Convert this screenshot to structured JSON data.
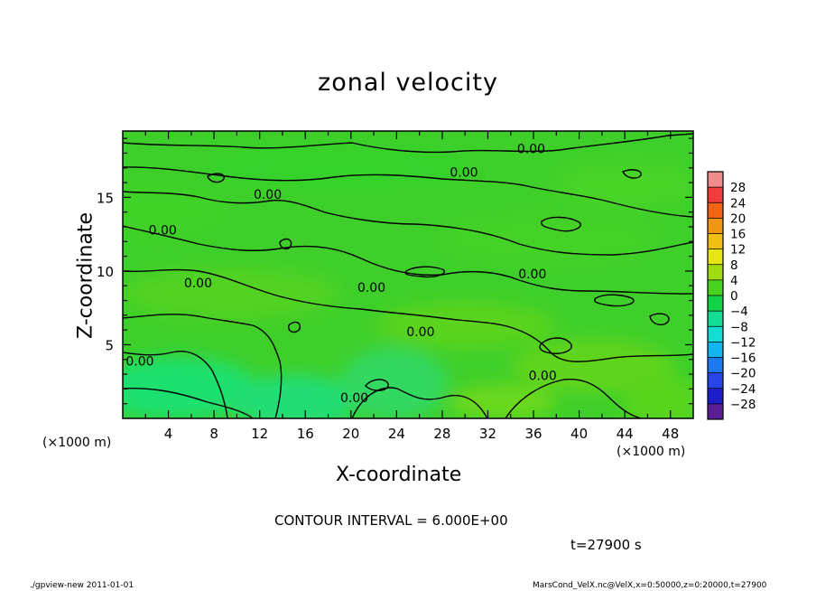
{
  "page": {
    "footer_left": "./gpview-new   2011-01-01",
    "footer_right": "MarsCond_VelX.nc@VelX,x=0:50000,z=0:20000,t=27900"
  },
  "chart_data": {
    "type": "heatmap",
    "title": "zonal velocity",
    "xlabel": "X-coordinate",
    "ylabel": "Z-coordinate",
    "x_unit_label": "(×1000 m)",
    "xlim": [
      0,
      50
    ],
    "ylim": [
      0,
      19.5
    ],
    "x_ticks": [
      4,
      8,
      12,
      16,
      20,
      24,
      28,
      32,
      36,
      40,
      44,
      48
    ],
    "y_ticks": [
      5,
      10,
      15
    ],
    "contour_interval_text": "CONTOUR INTERVAL = 6.000E+00",
    "time_text": "t=27900 s",
    "contour_levels": [
      0
    ],
    "contour_labels": [
      {
        "text": "0.00",
        "x": 35.8,
        "y": 18.3
      },
      {
        "text": "0.00",
        "x": 29.9,
        "y": 16.7
      },
      {
        "text": "0.00",
        "x": 12.7,
        "y": 15.2
      },
      {
        "text": "0.00",
        "x": 3.5,
        "y": 12.8
      },
      {
        "text": "0.00",
        "x": 6.6,
        "y": 9.2
      },
      {
        "text": "0.00",
        "x": 21.8,
        "y": 8.9
      },
      {
        "text": "0.00",
        "x": 35.9,
        "y": 9.8
      },
      {
        "text": "0.00",
        "x": 26.1,
        "y": 5.9
      },
      {
        "text": "0.00",
        "x": 1.5,
        "y": 3.9
      },
      {
        "text": "0.00",
        "x": 36.8,
        "y": 2.9
      },
      {
        "text": "0.00",
        "x": 20.3,
        "y": 1.4
      }
    ],
    "colorbar": {
      "levels": [
        -32,
        -28,
        -24,
        -20,
        -16,
        -12,
        -8,
        -4,
        0,
        4,
        8,
        12,
        16,
        20,
        24,
        28,
        32
      ],
      "tick_labels": [
        "28",
        "24",
        "20",
        "16",
        "12",
        "8",
        "4",
        "0",
        "−4",
        "−8",
        "−12",
        "−16",
        "−20",
        "−24",
        "−28"
      ],
      "colors": [
        "#5a1e96",
        "#1e1ec8",
        "#2846e6",
        "#1e78f0",
        "#14b4f0",
        "#14dcd2",
        "#14dc96",
        "#14d246",
        "#46d21e",
        "#a0dc14",
        "#e6e614",
        "#f0be14",
        "#f09614",
        "#f06414",
        "#f03c3c",
        "#f08c8c"
      ]
    }
  }
}
